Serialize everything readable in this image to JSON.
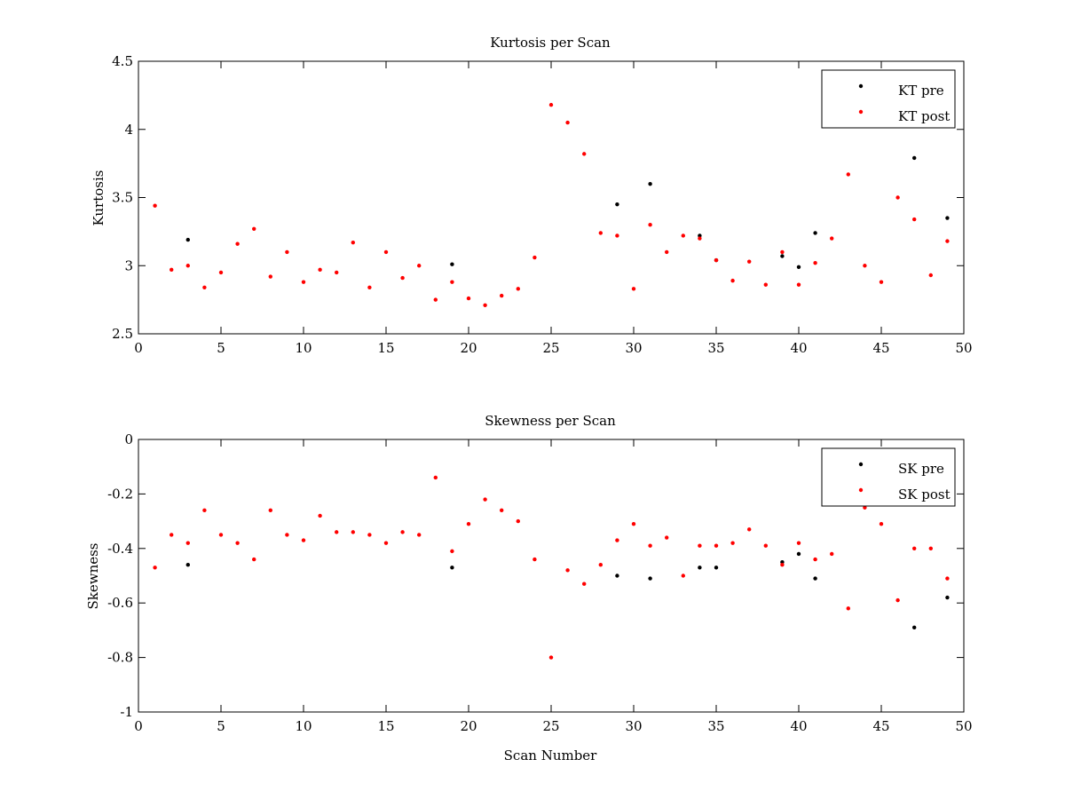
{
  "chart_data": [
    {
      "type": "scatter",
      "title": "Kurtosis per Scan",
      "xlabel": "",
      "ylabel": "Kurtosis",
      "xlim": [
        0,
        50
      ],
      "ylim": [
        2.5,
        4.5
      ],
      "xticks": [
        "0",
        "5",
        "10",
        "15",
        "20",
        "25",
        "30",
        "35",
        "40",
        "45",
        "50"
      ],
      "yticks": [
        "2.5",
        "3",
        "3.5",
        "4",
        "4.5"
      ],
      "grid": false,
      "legend_position": "top-right",
      "series": [
        {
          "name": "KT pre",
          "color": "#000000",
          "marker": "dot",
          "points": [
            [
              3,
              3.19
            ],
            [
              19,
              3.01
            ],
            [
              29,
              3.45
            ],
            [
              31,
              3.6
            ],
            [
              34,
              3.22
            ],
            [
              35,
              3.04
            ],
            [
              39,
              3.07
            ],
            [
              40,
              2.99
            ],
            [
              41,
              3.24
            ],
            [
              47,
              3.79
            ],
            [
              49,
              3.35
            ]
          ]
        },
        {
          "name": "KT post",
          "color": "#ff0000",
          "marker": "dot",
          "points": [
            [
              1,
              3.44
            ],
            [
              2,
              2.97
            ],
            [
              3,
              3.0
            ],
            [
              4,
              2.84
            ],
            [
              5,
              2.95
            ],
            [
              6,
              3.16
            ],
            [
              7,
              3.27
            ],
            [
              8,
              2.92
            ],
            [
              9,
              3.1
            ],
            [
              10,
              2.88
            ],
            [
              11,
              2.97
            ],
            [
              12,
              2.95
            ],
            [
              13,
              3.17
            ],
            [
              14,
              2.84
            ],
            [
              15,
              3.1
            ],
            [
              16,
              2.91
            ],
            [
              17,
              3.0
            ],
            [
              18,
              2.75
            ],
            [
              19,
              2.88
            ],
            [
              20,
              2.76
            ],
            [
              21,
              2.71
            ],
            [
              22,
              2.78
            ],
            [
              23,
              2.83
            ],
            [
              24,
              3.06
            ],
            [
              25,
              4.18
            ],
            [
              26,
              4.05
            ],
            [
              27,
              3.82
            ],
            [
              28,
              3.24
            ],
            [
              29,
              3.22
            ],
            [
              30,
              2.83
            ],
            [
              31,
              3.3
            ],
            [
              32,
              3.1
            ],
            [
              33,
              3.22
            ],
            [
              34,
              3.2
            ],
            [
              35,
              3.04
            ],
            [
              36,
              2.89
            ],
            [
              37,
              3.03
            ],
            [
              38,
              2.86
            ],
            [
              39,
              3.1
            ],
            [
              40,
              2.86
            ],
            [
              41,
              3.02
            ],
            [
              42,
              3.2
            ],
            [
              43,
              3.67
            ],
            [
              44,
              3.0
            ],
            [
              45,
              2.88
            ],
            [
              46,
              3.5
            ],
            [
              47,
              3.34
            ],
            [
              48,
              2.93
            ],
            [
              49,
              3.18
            ]
          ]
        }
      ]
    },
    {
      "type": "scatter",
      "title": "Skewness per Scan",
      "xlabel": "Scan Number",
      "ylabel": "Skewness",
      "xlim": [
        0,
        50
      ],
      "ylim": [
        -1,
        0
      ],
      "xticks": [
        "0",
        "5",
        "10",
        "15",
        "20",
        "25",
        "30",
        "35",
        "40",
        "45",
        "50"
      ],
      "yticks": [
        "-1",
        "-0.8",
        "-0.6",
        "-0.4",
        "-0.2",
        "0"
      ],
      "grid": false,
      "legend_position": "top-right",
      "series": [
        {
          "name": "SK pre",
          "color": "#000000",
          "marker": "dot",
          "points": [
            [
              3,
              -0.46
            ],
            [
              19,
              -0.47
            ],
            [
              29,
              -0.5
            ],
            [
              31,
              -0.51
            ],
            [
              34,
              -0.47
            ],
            [
              35,
              -0.47
            ],
            [
              39,
              -0.45
            ],
            [
              40,
              -0.42
            ],
            [
              41,
              -0.51
            ],
            [
              47,
              -0.69
            ],
            [
              49,
              -0.58
            ]
          ]
        },
        {
          "name": "SK post",
          "color": "#ff0000",
          "marker": "dot",
          "points": [
            [
              1,
              -0.47
            ],
            [
              2,
              -0.35
            ],
            [
              3,
              -0.38
            ],
            [
              4,
              -0.26
            ],
            [
              5,
              -0.35
            ],
            [
              6,
              -0.38
            ],
            [
              7,
              -0.44
            ],
            [
              8,
              -0.26
            ],
            [
              9,
              -0.35
            ],
            [
              10,
              -0.37
            ],
            [
              11,
              -0.28
            ],
            [
              12,
              -0.34
            ],
            [
              13,
              -0.34
            ],
            [
              14,
              -0.35
            ],
            [
              15,
              -0.38
            ],
            [
              16,
              -0.34
            ],
            [
              17,
              -0.35
            ],
            [
              18,
              -0.14
            ],
            [
              19,
              -0.41
            ],
            [
              20,
              -0.31
            ],
            [
              21,
              -0.22
            ],
            [
              22,
              -0.26
            ],
            [
              23,
              -0.3
            ],
            [
              24,
              -0.44
            ],
            [
              25,
              -0.8
            ],
            [
              26,
              -0.48
            ],
            [
              27,
              -0.53
            ],
            [
              28,
              -0.46
            ],
            [
              29,
              -0.37
            ],
            [
              30,
              -0.31
            ],
            [
              31,
              -0.39
            ],
            [
              32,
              -0.36
            ],
            [
              33,
              -0.5
            ],
            [
              34,
              -0.39
            ],
            [
              35,
              -0.39
            ],
            [
              36,
              -0.38
            ],
            [
              37,
              -0.33
            ],
            [
              38,
              -0.39
            ],
            [
              39,
              -0.46
            ],
            [
              40,
              -0.38
            ],
            [
              41,
              -0.44
            ],
            [
              42,
              -0.42
            ],
            [
              43,
              -0.62
            ],
            [
              44,
              -0.25
            ],
            [
              45,
              -0.31
            ],
            [
              46,
              -0.59
            ],
            [
              47,
              -0.4
            ],
            [
              48,
              -0.4
            ],
            [
              49,
              -0.51
            ]
          ]
        }
      ]
    }
  ]
}
